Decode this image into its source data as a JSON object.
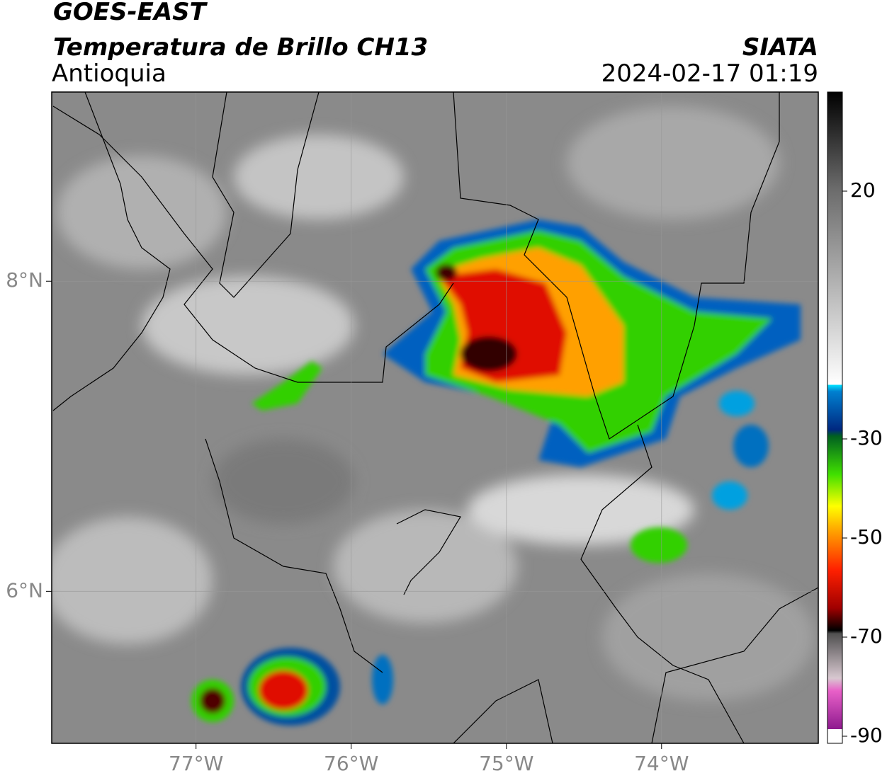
{
  "header": {
    "title": "GOES-EAST",
    "subtitle": "Temperatura de Brillo CH13",
    "region": "Antioquia",
    "agency": "SIATA",
    "datetime": "2024-02-17 01:19"
  },
  "map": {
    "lonlim": [
      -77.93,
      -72.99
    ],
    "latlim": [
      5.02,
      9.22
    ],
    "lonticks": [
      {
        "value": -77,
        "label": "77°W"
      },
      {
        "value": -76,
        "label": "76°W"
      },
      {
        "value": -75,
        "label": "75°W"
      },
      {
        "value": -74,
        "label": "74°W"
      }
    ],
    "latticks": [
      {
        "value": 8,
        "label": "8°N"
      },
      {
        "value": 6,
        "label": "6°N"
      }
    ]
  },
  "colorbar": {
    "lim": [
      -90,
      40
    ],
    "ticks": [
      20,
      -30,
      -50,
      -70,
      -90
    ]
  }
}
